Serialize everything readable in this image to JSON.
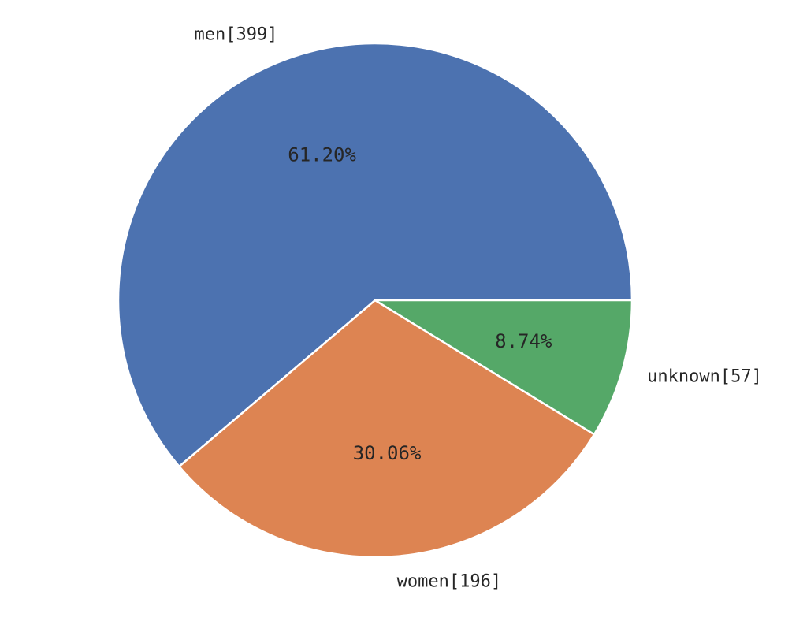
{
  "chart_data": {
    "type": "pie",
    "title": "",
    "slices": [
      {
        "label": "men[399]",
        "value": 399,
        "percent": 61.2,
        "percent_label": "61.20%",
        "color": "#4c72b0"
      },
      {
        "label": "women[196]",
        "value": 196,
        "percent": 30.06,
        "percent_label": "30.06%",
        "color": "#dd8452"
      },
      {
        "label": "unknown[57]",
        "value": 57,
        "percent": 8.74,
        "percent_label": "8.74%",
        "color": "#55a868"
      }
    ],
    "start_angle_deg": 0,
    "direction": "counterclockwise",
    "legend": "none"
  }
}
